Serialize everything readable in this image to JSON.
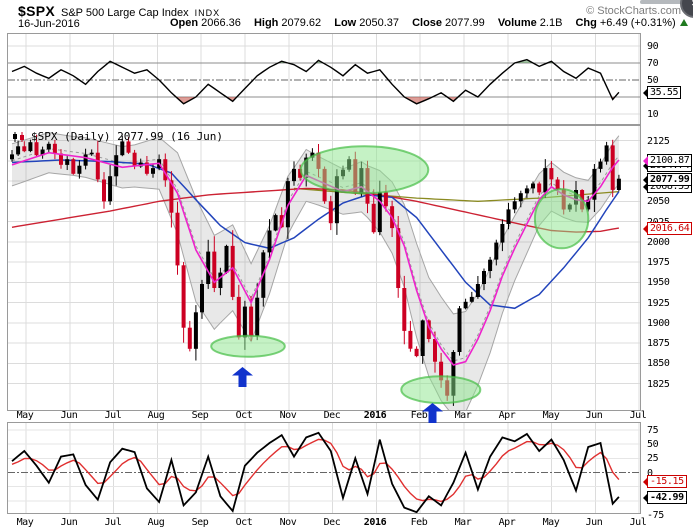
{
  "colors": {
    "up": "#000000",
    "down": "#cc0022",
    "ma_fast": "#ee22cc",
    "ma_mid": "#2244bb",
    "ma_slow": "#cc2233",
    "olive": "#8a8a20",
    "band": "#a6a6a6",
    "osc": "#000000",
    "osc_signal": "#e03030",
    "annotation_green": "#46be46",
    "arrow_blue": "#1133cc",
    "change_green": "#1f7a1f",
    "grid": "#dcdcdc"
  },
  "header": {
    "symbol": "$SPX",
    "name": "S&P 500 Large Cap Index",
    "exchange": "INDX",
    "copyright": "© StockCharts.com",
    "date": "16-Jun-2016",
    "quote": {
      "open_label": "Open",
      "open": "2066.36",
      "high_label": "High",
      "high": "2079.62",
      "low_label": "Low",
      "low": "2050.37",
      "close_label": "Close",
      "close": "2077.99",
      "volume_label": "Volume",
      "volume": "2.1B",
      "chg_label": "Chg",
      "chg": "+6.49 (+0.31%)",
      "chg_direction": "up"
    }
  },
  "main_chart_label": "$SPX (Daily) 2077.99 (16 Jun)",
  "x_axis": {
    "months": [
      "May",
      "Jun",
      "Jul",
      "Aug",
      "Sep",
      "Oct",
      "Nov",
      "Dec",
      "2016",
      "Feb",
      "Mar",
      "Apr",
      "May",
      "Jun",
      "Jul"
    ],
    "bold_label": "2016"
  },
  "y_axis": {
    "top_ticks": [
      90,
      70,
      50,
      10
    ],
    "main_ticks": [
      2125,
      2050,
      2025,
      2000,
      1975,
      1950,
      1925,
      1900,
      1875,
      1850,
      1825
    ],
    "bottom_ticks": [
      75,
      50,
      25,
      0,
      -75
    ]
  },
  "badges": [
    {
      "panel": "top",
      "value": 35.55,
      "label": "35.55",
      "style": "black"
    },
    {
      "panel": "main",
      "value": 2100.87,
      "label": "2100.87",
      "style": "magenta-arrow"
    },
    {
      "panel": "main",
      "value": 2094.74,
      "label": "2094.74",
      "style": "clipped"
    },
    {
      "panel": "main",
      "value": 2077.99,
      "label": "2077.99",
      "style": "close"
    },
    {
      "panel": "main",
      "value": 2068.55,
      "label": "2068.55",
      "style": "clipped"
    },
    {
      "panel": "main",
      "value": 2016.64,
      "label": "2016.64",
      "style": "red"
    },
    {
      "panel": "bottom",
      "value": -15.15,
      "label": "-15.15",
      "style": "red"
    },
    {
      "panel": "bottom",
      "value": -42.99,
      "label": "-42.99",
      "style": "black-bold"
    }
  ],
  "chart_data": [
    {
      "id": "momentum",
      "type": "line",
      "panel": "top",
      "title": "",
      "ylim": [
        0,
        100
      ],
      "overbought": 70,
      "oversold": 30,
      "midline": 50,
      "last_value": 35.55,
      "points": [
        [
          0,
          60
        ],
        [
          2,
          66
        ],
        [
          4,
          58
        ],
        [
          6,
          52
        ],
        [
          8,
          62
        ],
        [
          10,
          55
        ],
        [
          12,
          45
        ],
        [
          14,
          60
        ],
        [
          16,
          72
        ],
        [
          18,
          65
        ],
        [
          20,
          58
        ],
        [
          22,
          62
        ],
        [
          24,
          50
        ],
        [
          26,
          35
        ],
        [
          28,
          22
        ],
        [
          30,
          30
        ],
        [
          32,
          45
        ],
        [
          34,
          35
        ],
        [
          36,
          25
        ],
        [
          38,
          40
        ],
        [
          40,
          55
        ],
        [
          42,
          65
        ],
        [
          44,
          72
        ],
        [
          46,
          68
        ],
        [
          48,
          60
        ],
        [
          50,
          73
        ],
        [
          52,
          65
        ],
        [
          54,
          55
        ],
        [
          56,
          68
        ],
        [
          58,
          58
        ],
        [
          60,
          62
        ],
        [
          62,
          45
        ],
        [
          64,
          30
        ],
        [
          66,
          22
        ],
        [
          68,
          28
        ],
        [
          70,
          35
        ],
        [
          72,
          25
        ],
        [
          74,
          38
        ],
        [
          76,
          30
        ],
        [
          78,
          45
        ],
        [
          80,
          58
        ],
        [
          82,
          70
        ],
        [
          84,
          74
        ],
        [
          86,
          66
        ],
        [
          88,
          72
        ],
        [
          90,
          60
        ],
        [
          92,
          52
        ],
        [
          94,
          64
        ],
        [
          96,
          58
        ],
        [
          98,
          27
        ],
        [
          99,
          35.55
        ]
      ]
    },
    {
      "id": "price",
      "type": "candlestick",
      "panel": "main",
      "title": "$SPX (Daily) 2077.99 (16 Jun)",
      "ylim": [
        1795,
        2143
      ],
      "grid_step": 25,
      "closes": [
        2108,
        2118,
        2112,
        2123,
        2107,
        2114,
        2121,
        2109,
        2095,
        2102,
        2084,
        2094,
        2108,
        2110,
        2077,
        2050,
        2081,
        2107,
        2124,
        2110,
        2093,
        2098,
        2084,
        2091,
        2102,
        2076,
        2036,
        1971,
        1894,
        1868,
        1913,
        1948,
        1988,
        1943,
        1962,
        1995,
        1932,
        1882,
        1920,
        1884,
        1931,
        1987,
        2014,
        2033,
        2018,
        2075,
        2090,
        2079,
        2104,
        2110,
        2090,
        2050,
        2023,
        2081,
        2089,
        2102,
        2060,
        2091,
        2047,
        2012,
        2061,
        2044,
        2017,
        1943,
        1890,
        1868,
        1859,
        1903,
        1880,
        1852,
        1829,
        1810,
        1864,
        1918,
        1926,
        1932,
        1948,
        1964,
        1978,
        1999,
        2022,
        2040,
        2050,
        2060,
        2066,
        2072,
        2061,
        2091,
        2077,
        2065,
        2040,
        2046,
        2064,
        2040,
        2052,
        2090,
        2099,
        2119,
        2064,
        2078
      ],
      "ma_fast": [
        [
          0,
          2095
        ],
        [
          6,
          2110
        ],
        [
          12,
          2104
        ],
        [
          18,
          2092
        ],
        [
          24,
          2097
        ],
        [
          27,
          2060
        ],
        [
          30,
          1990
        ],
        [
          33,
          1950
        ],
        [
          36,
          1968
        ],
        [
          39,
          1925
        ],
        [
          42,
          1978
        ],
        [
          45,
          2045
        ],
        [
          48,
          2082
        ],
        [
          51,
          2072
        ],
        [
          54,
          2062
        ],
        [
          57,
          2068
        ],
        [
          60,
          2050
        ],
        [
          62,
          2030
        ],
        [
          64,
          1995
        ],
        [
          66,
          1940
        ],
        [
          68,
          1895
        ],
        [
          70,
          1868
        ],
        [
          72,
          1848
        ],
        [
          74,
          1852
        ],
        [
          76,
          1880
        ],
        [
          78,
          1915
        ],
        [
          80,
          1958
        ],
        [
          82,
          1992
        ],
        [
          84,
          2022
        ],
        [
          86,
          2052
        ],
        [
          88,
          2068
        ],
        [
          90,
          2058
        ],
        [
          92,
          2052
        ],
        [
          94,
          2050
        ],
        [
          96,
          2068
        ],
        [
          98,
          2092
        ],
        [
          99,
          2101
        ]
      ],
      "ma_mid": [
        [
          0,
          2098
        ],
        [
          8,
          2101
        ],
        [
          16,
          2099
        ],
        [
          22,
          2096
        ],
        [
          26,
          2085
        ],
        [
          30,
          2052
        ],
        [
          34,
          2020
        ],
        [
          38,
          1999
        ],
        [
          42,
          1992
        ],
        [
          46,
          2005
        ],
        [
          50,
          2028
        ],
        [
          54,
          2048
        ],
        [
          58,
          2058
        ],
        [
          62,
          2055
        ],
        [
          66,
          2030
        ],
        [
          70,
          1990
        ],
        [
          74,
          1950
        ],
        [
          78,
          1922
        ],
        [
          82,
          1918
        ],
        [
          86,
          1935
        ],
        [
          90,
          1968
        ],
        [
          94,
          2005
        ],
        [
          97,
          2040
        ],
        [
          99,
          2062
        ]
      ],
      "ma_slow": [
        [
          0,
          2018
        ],
        [
          8,
          2028
        ],
        [
          16,
          2038
        ],
        [
          24,
          2050
        ],
        [
          32,
          2058
        ],
        [
          40,
          2062
        ],
        [
          48,
          2066
        ],
        [
          54,
          2064
        ],
        [
          60,
          2058
        ],
        [
          66,
          2050
        ],
        [
          72,
          2040
        ],
        [
          78,
          2030
        ],
        [
          84,
          2020
        ],
        [
          88,
          2014
        ],
        [
          92,
          2012
        ],
        [
          96,
          2013
        ],
        [
          99,
          2017
        ]
      ],
      "trendline_olive": [
        [
          46,
          2066
        ],
        [
          56,
          2060
        ],
        [
          66,
          2054
        ],
        [
          76,
          2050
        ],
        [
          86,
          2054
        ],
        [
          99,
          2062
        ]
      ],
      "band_width": [
        [
          0,
          26
        ],
        [
          10,
          24
        ],
        [
          20,
          26
        ],
        [
          24,
          32
        ],
        [
          27,
          50
        ],
        [
          30,
          64
        ],
        [
          34,
          56
        ],
        [
          38,
          50
        ],
        [
          42,
          42
        ],
        [
          46,
          34
        ],
        [
          50,
          30
        ],
        [
          54,
          28
        ],
        [
          58,
          32
        ],
        [
          62,
          44
        ],
        [
          66,
          58
        ],
        [
          70,
          64
        ],
        [
          74,
          62
        ],
        [
          78,
          52
        ],
        [
          82,
          40
        ],
        [
          86,
          32
        ],
        [
          90,
          28
        ],
        [
          94,
          26
        ],
        [
          99,
          30
        ]
      ],
      "annotations": {
        "ellipses": [
          {
            "bars": [
              47.1,
              67.9
            ],
            "prices": [
              2118,
              2060
            ]
          },
          {
            "bars": [
              32.5,
              44.5
            ],
            "prices": [
              1884,
              1858
            ]
          },
          {
            "bars": [
              63.5,
              76.4
            ],
            "prices": [
              1834,
              1801
            ]
          },
          {
            "bars": [
              85.3,
              94.0
            ],
            "prices": [
              2065,
              1992
            ]
          }
        ],
        "arrows": [
          {
            "bar": 37.5,
            "tip_price": 1846
          },
          {
            "bar": 68.5,
            "tip_price": 1801
          }
        ]
      }
    },
    {
      "id": "swing",
      "type": "line",
      "panel": "bottom",
      "title": "",
      "ylim": [
        -85,
        85
      ],
      "midline": 0,
      "last_value": -42.99,
      "signal_last_value": -15.15,
      "points": [
        [
          0,
          20
        ],
        [
          2,
          38
        ],
        [
          4,
          12
        ],
        [
          6,
          -18
        ],
        [
          8,
          28
        ],
        [
          10,
          32
        ],
        [
          12,
          -22
        ],
        [
          14,
          -48
        ],
        [
          16,
          18
        ],
        [
          18,
          42
        ],
        [
          20,
          36
        ],
        [
          22,
          -28
        ],
        [
          24,
          -52
        ],
        [
          26,
          22
        ],
        [
          28,
          -58
        ],
        [
          30,
          -35
        ],
        [
          32,
          28
        ],
        [
          34,
          -42
        ],
        [
          36,
          -68
        ],
        [
          38,
          12
        ],
        [
          40,
          35
        ],
        [
          42,
          52
        ],
        [
          44,
          66
        ],
        [
          46,
          28
        ],
        [
          48,
          62
        ],
        [
          50,
          70
        ],
        [
          52,
          38
        ],
        [
          54,
          -45
        ],
        [
          56,
          25
        ],
        [
          58,
          -38
        ],
        [
          60,
          58
        ],
        [
          62,
          -20
        ],
        [
          64,
          -62
        ],
        [
          66,
          -70
        ],
        [
          68,
          -42
        ],
        [
          70,
          -58
        ],
        [
          72,
          -18
        ],
        [
          74,
          35
        ],
        [
          76,
          -30
        ],
        [
          78,
          28
        ],
        [
          80,
          62
        ],
        [
          82,
          55
        ],
        [
          84,
          68
        ],
        [
          86,
          38
        ],
        [
          88,
          58
        ],
        [
          90,
          22
        ],
        [
          92,
          -32
        ],
        [
          94,
          45
        ],
        [
          96,
          52
        ],
        [
          98,
          -55
        ],
        [
          99,
          -42.99
        ]
      ]
    }
  ]
}
